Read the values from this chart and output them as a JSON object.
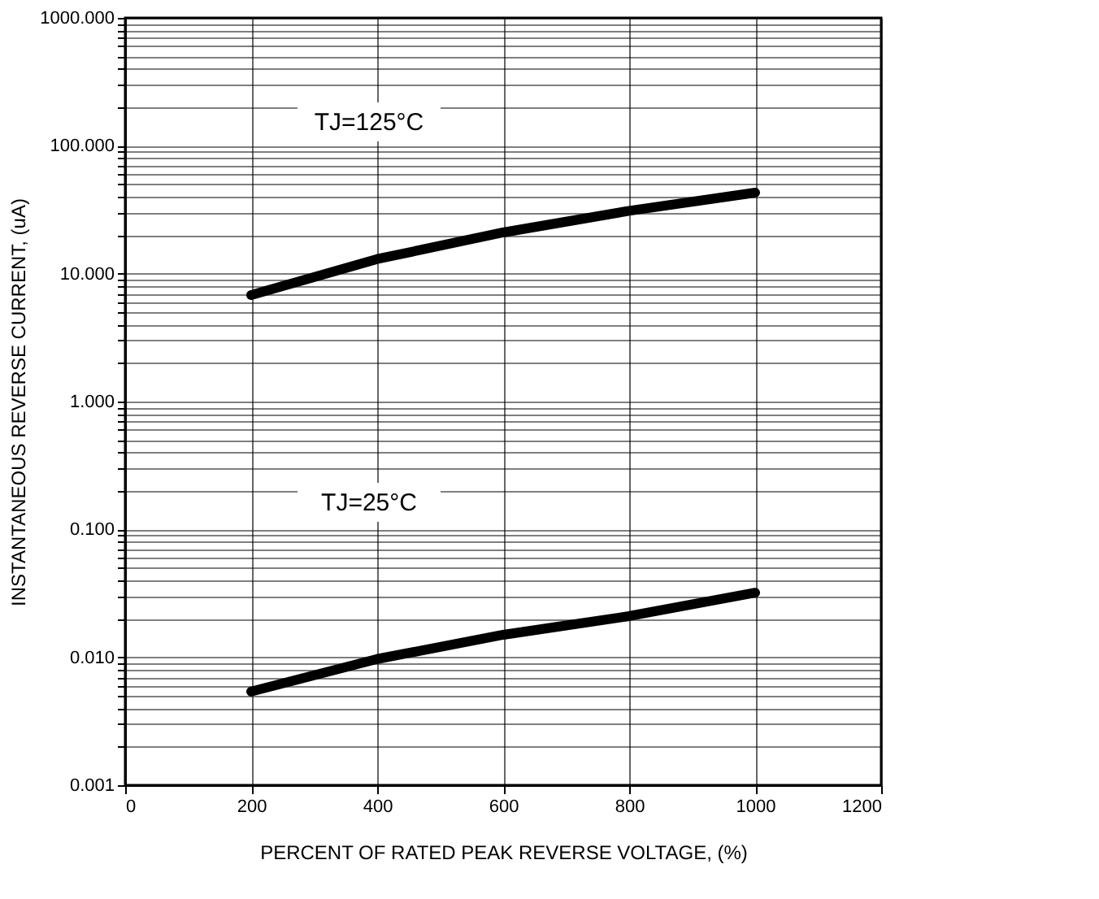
{
  "chart_data": {
    "type": "line",
    "xlabel": "PERCENT OF RATED PEAK REVERSE VOLTAGE, (%)",
    "ylabel": "INSTANTANEOUS REVERSE CURRENT, (uA)",
    "x": [
      200,
      400,
      600,
      800,
      1000
    ],
    "series": [
      {
        "color": "#000000",
        "values": [
          6.8,
          13,
          21,
          31,
          43
        ]
      },
      {
        "color": "#000000",
        "values": [
          0.0054,
          0.0097,
          0.015,
          0.021,
          0.032
        ]
      }
    ],
    "annotations": [
      "TJ=125°C",
      "TJ=25°C"
    ],
    "xlim": [
      0,
      1200
    ],
    "xticks": [
      0,
      200,
      400,
      600,
      800,
      1000,
      1200
    ],
    "ylim": [
      0.001,
      1000
    ],
    "yticks": [
      {
        "value": 0.001,
        "label": "0.001"
      },
      {
        "value": 0.002,
        "label": null
      },
      {
        "value": 0.003,
        "label": null
      },
      {
        "value": 0.004,
        "label": null
      },
      {
        "value": 0.005,
        "label": null
      },
      {
        "value": 0.006,
        "label": null
      },
      {
        "value": 0.007,
        "label": null
      },
      {
        "value": 0.008,
        "label": null
      },
      {
        "value": 0.009,
        "label": null
      },
      {
        "value": 0.01,
        "label": "0.010"
      },
      {
        "value": 0.02,
        "label": null
      },
      {
        "value": 0.03,
        "label": null
      },
      {
        "value": 0.04,
        "label": null
      },
      {
        "value": 0.05,
        "label": null
      },
      {
        "value": 0.06,
        "label": null
      },
      {
        "value": 0.07,
        "label": null
      },
      {
        "value": 0.08,
        "label": null
      },
      {
        "value": 0.09,
        "label": null
      },
      {
        "value": 0.1,
        "label": "0.100"
      },
      {
        "value": 0.2,
        "label": null
      },
      {
        "value": 0.3,
        "label": null
      },
      {
        "value": 0.4,
        "label": null
      },
      {
        "value": 0.5,
        "label": null
      },
      {
        "value": 0.6,
        "label": null
      },
      {
        "value": 0.7,
        "label": null
      },
      {
        "value": 0.8,
        "label": null
      },
      {
        "value": 0.9,
        "label": null
      },
      {
        "value": 1,
        "label": "1.000"
      },
      {
        "value": 2,
        "label": null
      },
      {
        "value": 3,
        "label": null
      },
      {
        "value": 4,
        "label": null
      },
      {
        "value": 5,
        "label": null
      },
      {
        "value": 6,
        "label": null
      },
      {
        "value": 7,
        "label": null
      },
      {
        "value": 8,
        "label": null
      },
      {
        "value": 9,
        "label": null
      },
      {
        "value": 10,
        "label": "10.000"
      },
      {
        "value": 20,
        "label": null
      },
      {
        "value": 30,
        "label": null
      },
      {
        "value": 40,
        "label": null
      },
      {
        "value": 50,
        "label": null
      },
      {
        "value": 60,
        "label": null
      },
      {
        "value": 70,
        "label": null
      },
      {
        "value": 80,
        "label": null
      },
      {
        "value": 90,
        "label": null
      },
      {
        "value": 100,
        "label": "100.000"
      },
      {
        "value": 200,
        "label": null
      },
      {
        "value": 300,
        "label": null
      },
      {
        "value": 400,
        "label": null
      },
      {
        "value": 500,
        "label": null
      },
      {
        "value": 600,
        "label": null
      },
      {
        "value": 700,
        "label": null
      },
      {
        "value": 800,
        "label": null
      },
      {
        "value": 900,
        "label": null
      },
      {
        "value": 1000,
        "label": "1000.000"
      }
    ],
    "log": true,
    "grid": true,
    "marker": "none",
    "line_style": "solid"
  }
}
